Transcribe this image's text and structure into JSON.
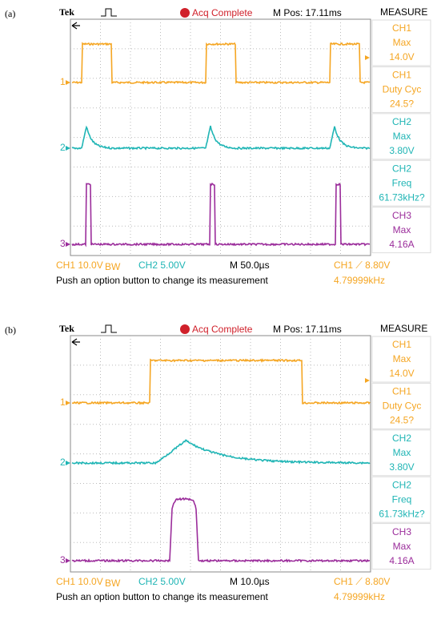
{
  "panels": [
    {
      "label": "(a)",
      "header": {
        "brand": "Tek",
        "status": "Acq Complete",
        "position": "M Pos: 17.11ms"
      },
      "menu": {
        "title": "MEASURE",
        "items": [
          [
            "CH1",
            "Max",
            "14.0V"
          ],
          [
            "CH1",
            "Duty Cyc",
            "24.5?"
          ],
          [
            "CH2",
            "Max",
            "3.80V"
          ],
          [
            "CH2",
            "Freq",
            "61.73kHz?"
          ],
          [
            "CH3",
            "Max",
            "4.16A"
          ]
        ]
      },
      "channel_markers": [
        "1",
        "2",
        "3"
      ],
      "footer": {
        "ch1": "CH1  10.0V",
        "bw": "BW",
        "ch2": "CH2  5.00V",
        "time": "M 50.0µs",
        "trigger": "CH1 ⟋ 8.80V",
        "freq": "4.79999kHz",
        "hint": "Push an option button to change its measurement"
      }
    },
    {
      "label": "(b)",
      "header": {
        "brand": "Tek",
        "status": "Acq Complete",
        "position": "M Pos: 17.11ms"
      },
      "menu": {
        "title": "MEASURE",
        "items": [
          [
            "CH1",
            "Max",
            "14.0V"
          ],
          [
            "CH1",
            "Duty Cyc",
            "24.5?"
          ],
          [
            "CH2",
            "Max",
            "3.80V"
          ],
          [
            "CH2",
            "Freq",
            "61.73kHz?"
          ],
          [
            "CH3",
            "Max",
            "4.16A"
          ]
        ]
      },
      "channel_markers": [
        "1",
        "2",
        "3"
      ],
      "footer": {
        "ch1": "CH1  10.0V",
        "bw": "BW",
        "ch2": "CH2  5.00V",
        "time": "M 10.0µs",
        "trigger": "CH1 ⟋ 8.80V",
        "freq": "4.79999kHz",
        "hint": "Push an option button to change its measurement"
      }
    }
  ]
}
